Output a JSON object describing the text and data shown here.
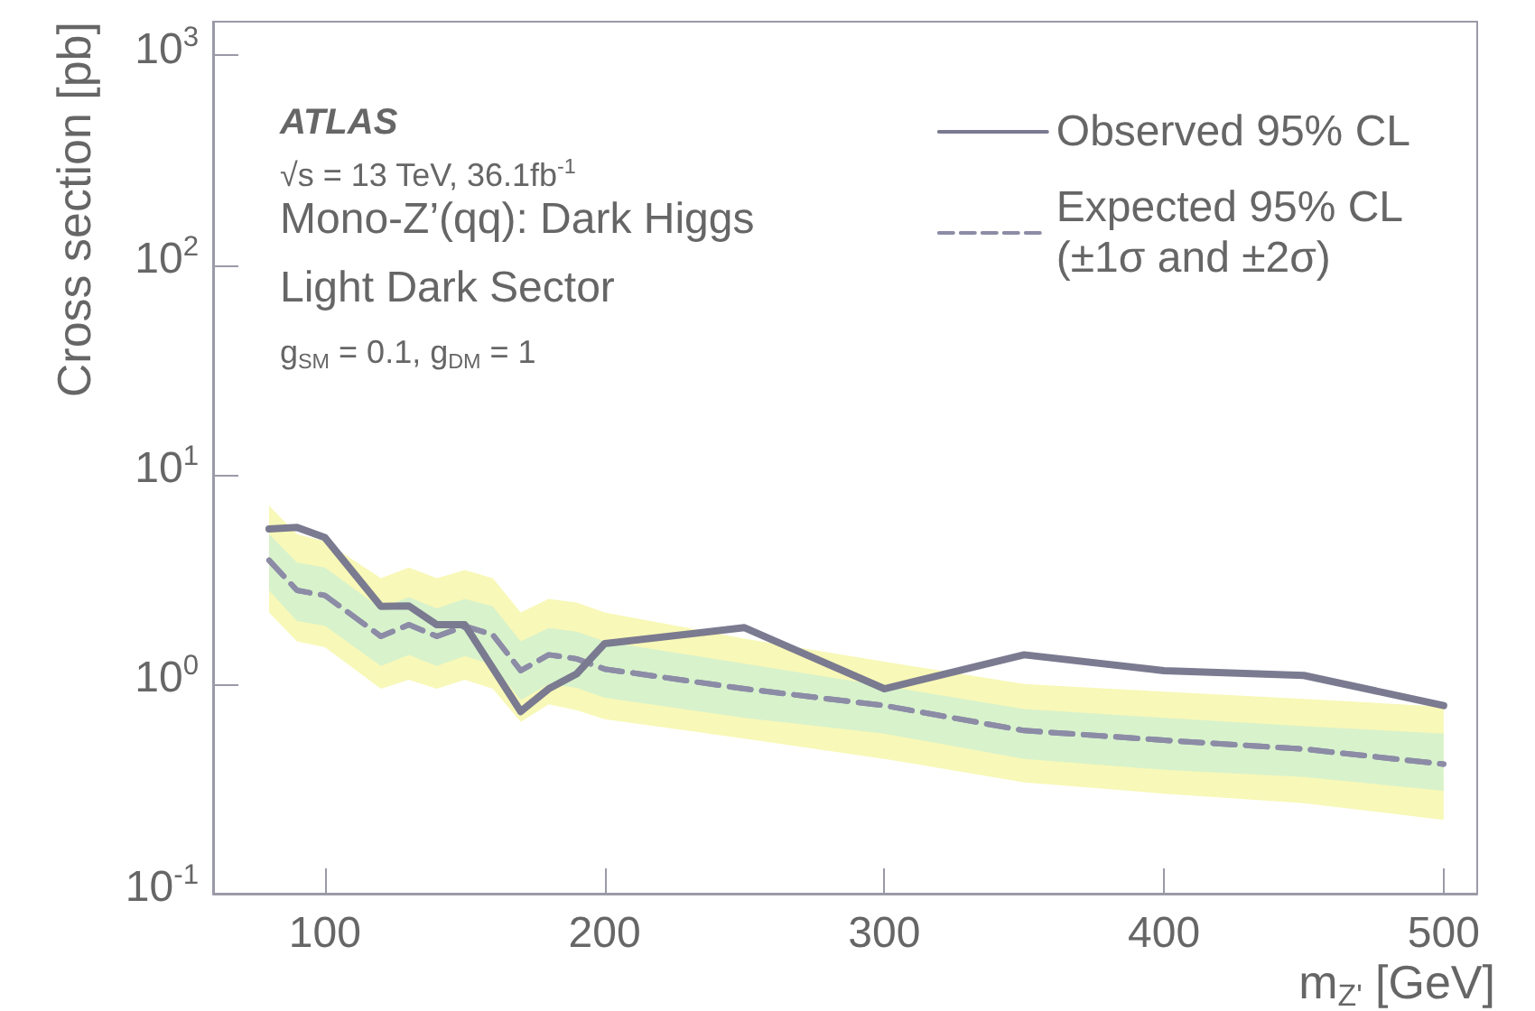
{
  "chart_data": {
    "type": "line",
    "xlabel": "m$_{Z'}$ [GeV]",
    "ylabel": "Cross section [pb]",
    "annotations": [
      "ATLAS",
      "√s = 13 TeV, 36.1fb$^{-1}$",
      "Mono-Z’(qq): Dark Higgs",
      "Light Dark Sector",
      "g$_{SM}$ = 0.1, g$_{DM}$ = 1"
    ],
    "log": "y",
    "legend": "top right",
    "grid": false,
    "xlim": [
      60,
      512
    ],
    "xticks": [
      100,
      200,
      300,
      400,
      500
    ],
    "ylim": [
      0.1,
      1450
    ],
    "yticks": [
      {
        "value": 0.1,
        "label": "10$^{-1}$"
      },
      {
        "value": 1,
        "label": "10$^{0}$"
      },
      {
        "value": 10,
        "label": "10$^{1}$"
      },
      {
        "value": 100,
        "label": "10$^{2}$"
      },
      {
        "value": 1000,
        "label": "10$^{3}$"
      }
    ],
    "series": [
      {
        "name": "Expected 95% CL\n(±1σ and ±2σ)",
        "color": "#8c8ca6",
        "line_style": "dashed",
        "x": [
          80,
          90,
          100,
          120,
          130,
          140,
          150,
          160,
          170,
          180,
          190,
          200,
          250,
          300,
          350,
          400,
          450,
          500
        ],
        "values": [
          3.9,
          2.8,
          2.65,
          1.69,
          1.92,
          1.69,
          1.89,
          1.72,
          1.16,
          1.38,
          1.32,
          1.18,
          0.95,
          0.79,
          0.6,
          0.54,
          0.49,
          0.415
        ],
        "lower": [
          2.2,
          1.6,
          1.5,
          0.95,
          1.05,
          0.95,
          1.05,
          0.95,
          0.66,
          0.8,
          0.75,
          0.68,
          0.55,
          0.44,
          0.34,
          0.3,
          0.27,
          0.225
        ],
        "upper": [
          7.1,
          5.2,
          4.8,
          3.2,
          3.6,
          3.2,
          3.5,
          3.2,
          2.2,
          2.55,
          2.45,
          2.2,
          1.65,
          1.28,
          1.0,
          0.92,
          0.85,
          0.78
        ]
      },
      {
        "color": "#8c8ca6",
        "line_style": "dashed",
        "x": [
          80,
          90,
          100,
          120,
          130,
          140,
          150,
          160,
          170,
          180,
          190,
          200,
          250,
          300,
          350,
          400,
          450,
          500
        ],
        "values": [
          3.9,
          2.8,
          2.65,
          1.69,
          1.92,
          1.69,
          1.89,
          1.72,
          1.16,
          1.38,
          1.32,
          1.18,
          0.95,
          0.79,
          0.6,
          0.54,
          0.49,
          0.415
        ],
        "lower": [
          2.8,
          2.0,
          1.9,
          1.22,
          1.38,
          1.22,
          1.36,
          1.24,
          0.84,
          1.0,
          0.96,
          0.86,
          0.69,
          0.58,
          0.44,
          0.39,
          0.36,
          0.31
        ],
        "upper": [
          5.2,
          3.8,
          3.6,
          2.3,
          2.6,
          2.3,
          2.55,
          2.35,
          1.6,
          1.85,
          1.78,
          1.6,
          1.25,
          0.98,
          0.76,
          0.69,
          0.63,
          0.58
        ]
      },
      {
        "name": "Observed 95% CL",
        "color": "#7a7a90",
        "line_style": "solid",
        "x": [
          80,
          90,
          100,
          120,
          130,
          140,
          150,
          170,
          180,
          190,
          200,
          250,
          300,
          350,
          400,
          450,
          500
        ],
        "values": [
          5.5,
          5.6,
          5.0,
          2.35,
          2.36,
          1.92,
          1.92,
          0.74,
          0.95,
          1.12,
          1.56,
          1.86,
          0.95,
          1.38,
          1.16,
          1.1,
          0.79
        ]
      }
    ]
  }
}
